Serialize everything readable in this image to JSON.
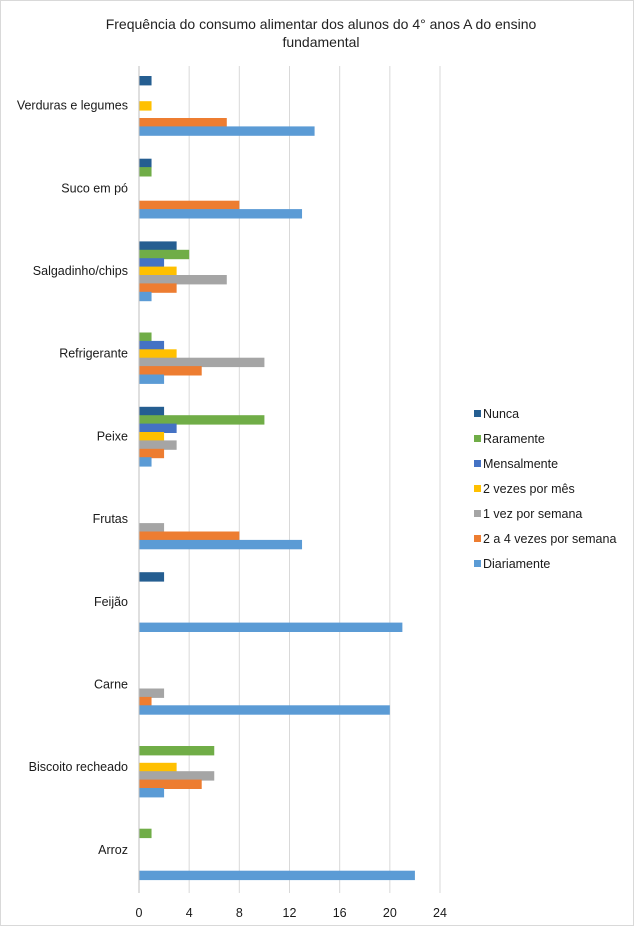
{
  "chart_data": {
    "type": "bar",
    "orientation": "horizontal",
    "title": "Frequência do consumo alimentar dos alunos do 4° anos A do ensino fundamental",
    "categories": [
      "Verduras e legumes",
      "Suco em pó",
      "Salgadinho/chips",
      "Refrigerante",
      "Peixe",
      "Frutas",
      "Feijão",
      "Carne",
      "Biscoito recheado",
      "Arroz"
    ],
    "series": [
      {
        "name": "Nunca",
        "color": "#255E91",
        "values": [
          1,
          1,
          3,
          0,
          2,
          0,
          2,
          0,
          0,
          0
        ]
      },
      {
        "name": "Raramente",
        "color": "#70AD47",
        "values": [
          0,
          1,
          4,
          1,
          10,
          0,
          0,
          0,
          6,
          1
        ]
      },
      {
        "name": "Mensalmente",
        "color": "#4472C4",
        "values": [
          0,
          0,
          2,
          2,
          3,
          0,
          0,
          0,
          0,
          0
        ]
      },
      {
        "name": "2 vezes por mês",
        "color": "#FFC000",
        "values": [
          1,
          0,
          3,
          3,
          2,
          0,
          0,
          0,
          3,
          0
        ]
      },
      {
        "name": "1 vez por semana",
        "color": "#A5A5A5",
        "values": [
          0,
          0,
          7,
          10,
          3,
          2,
          0,
          2,
          6,
          0
        ]
      },
      {
        "name": "2 a 4 vezes por semana",
        "color": "#ED7D31",
        "values": [
          7,
          8,
          3,
          5,
          2,
          8,
          0,
          1,
          5,
          0
        ]
      },
      {
        "name": "Diariamente",
        "color": "#5B9BD5",
        "values": [
          14,
          13,
          1,
          2,
          1,
          13,
          21,
          20,
          2,
          22
        ]
      }
    ],
    "xlim": [
      0,
      24
    ],
    "xticks": [
      0,
      4,
      8,
      12,
      16,
      20,
      24
    ],
    "grid": "vertical",
    "legend": "right"
  }
}
